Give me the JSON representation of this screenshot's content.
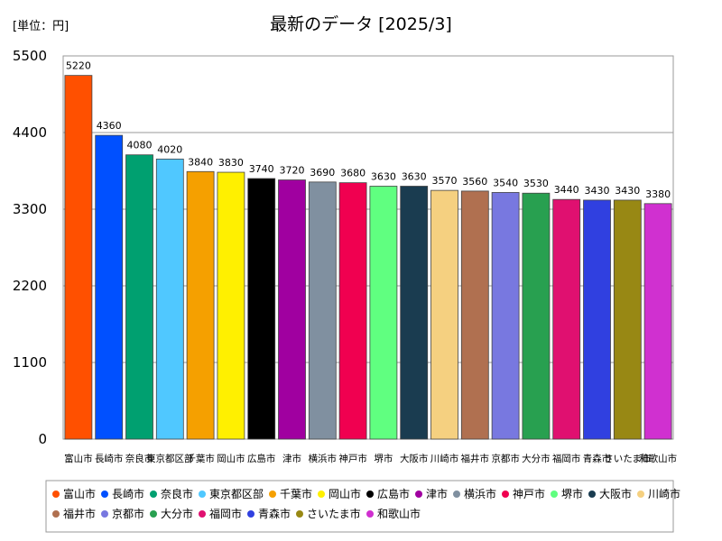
{
  "unit_label": "[単位：円]",
  "chart_data": {
    "type": "bar",
    "title": "最新のデータ [2025/3]",
    "xlabel": "",
    "ylabel": "",
    "ylim": [
      0,
      5500
    ],
    "yticks": [
      0,
      1100,
      2200,
      3300,
      4400,
      5500
    ],
    "grid": true,
    "legend_position": "bottom",
    "categories": [
      "富山市",
      "長崎市",
      "奈良市",
      "東京都区部",
      "千葉市",
      "岡山市",
      "広島市",
      "津市",
      "横浜市",
      "神戸市",
      "堺市",
      "大阪市",
      "川崎市",
      "福井市",
      "京都市",
      "大分市",
      "福岡市",
      "青森市",
      "さいたま市",
      "和歌山市"
    ],
    "values": [
      5220,
      4360,
      4080,
      4020,
      3840,
      3830,
      3740,
      3720,
      3690,
      3680,
      3630,
      3630,
      3570,
      3560,
      3540,
      3530,
      3440,
      3430,
      3430,
      3380
    ],
    "colors": [
      "#ff5000",
      "#0050ff",
      "#00a070",
      "#50c8ff",
      "#f5a000",
      "#fff000",
      "#000000",
      "#a000a0",
      "#8090a0",
      "#f00050",
      "#60ff80",
      "#1a3c50",
      "#f5d080",
      "#b07050",
      "#7878e0",
      "#28a050",
      "#e01070",
      "#3040e0",
      "#988814",
      "#d030d0"
    ]
  }
}
